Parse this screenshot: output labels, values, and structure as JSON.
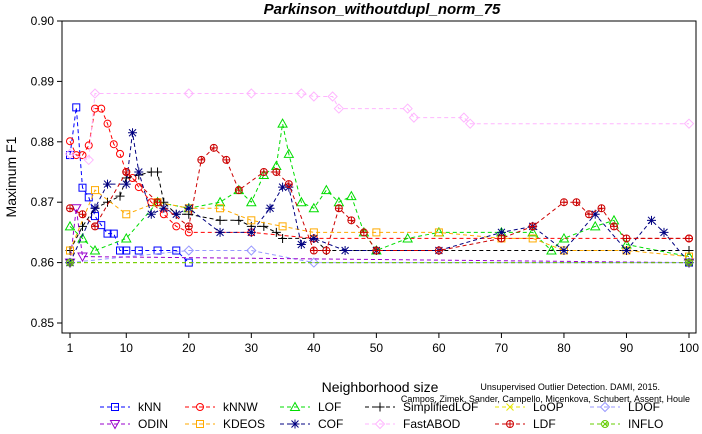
{
  "chart_data": {
    "type": "line",
    "title": "Parkinson_withoutdupl_norm_75",
    "xlabel": "Neighborhood size",
    "ylabel": "Maximum F1",
    "xlim": [
      0,
      100
    ],
    "ylim": [
      0.85,
      0.9
    ],
    "x_ticks": [
      "1",
      "10",
      "20",
      "30",
      "40",
      "50",
      "60",
      "70",
      "80",
      "90",
      "100"
    ],
    "y_ticks": [
      "0.85",
      "0.86",
      "0.87",
      "0.88",
      "0.89",
      "0.90"
    ],
    "grid": false,
    "legend_position": "bottom",
    "watermark": [
      "Campos, Zimek, Sander, Campello, Micenkova, Schubert, Assent, Houle",
      "Unsupervised Outlier Detection. DAMI, 2015."
    ],
    "series": [
      {
        "name": "kNN",
        "color": "#0000ff",
        "marker": "square",
        "points": [
          [
            1,
            0.8778
          ],
          [
            2,
            0.8857
          ],
          [
            3,
            0.8724
          ],
          [
            4,
            0.8708
          ],
          [
            5,
            0.8677
          ],
          [
            6,
            0.8662
          ],
          [
            7,
            0.8648
          ],
          [
            8,
            0.8648
          ],
          [
            9,
            0.862
          ],
          [
            10,
            0.862
          ],
          [
            12,
            0.862
          ],
          [
            15,
            0.862
          ],
          [
            18,
            0.862
          ],
          [
            20,
            0.86
          ],
          [
            100,
            0.86
          ]
        ]
      },
      {
        "name": "kNNW",
        "color": "#ff0000",
        "marker": "circle",
        "points": [
          [
            1,
            0.8801
          ],
          [
            2,
            0.8778
          ],
          [
            3,
            0.8778
          ],
          [
            4,
            0.8794
          ],
          [
            5,
            0.8855
          ],
          [
            6,
            0.8855
          ],
          [
            7,
            0.883
          ],
          [
            8,
            0.8796
          ],
          [
            9,
            0.878
          ],
          [
            10,
            0.875
          ],
          [
            11,
            0.874
          ],
          [
            12,
            0.8725
          ],
          [
            14,
            0.87
          ],
          [
            16,
            0.868
          ],
          [
            18,
            0.866
          ],
          [
            20,
            0.865
          ],
          [
            30,
            0.865
          ],
          [
            40,
            0.864
          ],
          [
            100,
            0.864
          ]
        ]
      },
      {
        "name": "LOF",
        "color": "#00dd00",
        "marker": "triangle",
        "points": [
          [
            1,
            0.866
          ],
          [
            3,
            0.864
          ],
          [
            5,
            0.862
          ],
          [
            10,
            0.864
          ],
          [
            15,
            0.87
          ],
          [
            20,
            0.869
          ],
          [
            25,
            0.87
          ],
          [
            28,
            0.872
          ],
          [
            30,
            0.87
          ],
          [
            32,
            0.8745
          ],
          [
            34,
            0.876
          ],
          [
            35,
            0.883
          ],
          [
            36,
            0.878
          ],
          [
            38,
            0.87
          ],
          [
            40,
            0.869
          ],
          [
            42,
            0.872
          ],
          [
            44,
            0.87
          ],
          [
            46,
            0.871
          ],
          [
            48,
            0.865
          ],
          [
            50,
            0.862
          ],
          [
            55,
            0.864
          ],
          [
            60,
            0.865
          ],
          [
            70,
            0.865
          ],
          [
            75,
            0.865
          ],
          [
            78,
            0.862
          ],
          [
            80,
            0.864
          ],
          [
            85,
            0.866
          ],
          [
            88,
            0.867
          ],
          [
            90,
            0.863
          ],
          [
            100,
            0.861
          ]
        ]
      },
      {
        "name": "SimplifiedLOF",
        "color": "#000000",
        "marker": "plus",
        "points": [
          [
            1,
            0.862
          ],
          [
            3,
            0.866
          ],
          [
            5,
            0.869
          ],
          [
            7,
            0.87
          ],
          [
            9,
            0.871
          ],
          [
            10,
            0.874
          ],
          [
            12,
            0.8745
          ],
          [
            14,
            0.875
          ],
          [
            15,
            0.875
          ],
          [
            16,
            0.87
          ],
          [
            18,
            0.868
          ],
          [
            20,
            0.868
          ],
          [
            25,
            0.867
          ],
          [
            28,
            0.867
          ],
          [
            30,
            0.866
          ],
          [
            32,
            0.866
          ],
          [
            34,
            0.865
          ],
          [
            35,
            0.864
          ],
          [
            40,
            0.864
          ],
          [
            42,
            0.862
          ],
          [
            100,
            0.862
          ]
        ]
      },
      {
        "name": "LoOP",
        "color": "#e6e600",
        "marker": "x",
        "points": [
          [
            1,
            0.86
          ],
          [
            100,
            0.86
          ]
        ]
      },
      {
        "name": "LDOF",
        "color": "#9999ff",
        "marker": "diamond",
        "points": [
          [
            1,
            0.86
          ],
          [
            20,
            0.862
          ],
          [
            30,
            0.862
          ],
          [
            40,
            0.86
          ],
          [
            100,
            0.86
          ]
        ]
      },
      {
        "name": "ODIN",
        "color": "#9900cc",
        "marker": "triangle-down",
        "points": [
          [
            1,
            0.86
          ],
          [
            2,
            0.869
          ],
          [
            3,
            0.861
          ],
          [
            100,
            0.86
          ]
        ]
      },
      {
        "name": "KDEOS",
        "color": "#ffaa00",
        "marker": "square",
        "points": [
          [
            1,
            0.862
          ],
          [
            5,
            0.872
          ],
          [
            10,
            0.868
          ],
          [
            15,
            0.87
          ],
          [
            20,
            0.869
          ],
          [
            25,
            0.869
          ],
          [
            30,
            0.867
          ],
          [
            35,
            0.866
          ],
          [
            40,
            0.865
          ],
          [
            50,
            0.865
          ],
          [
            60,
            0.865
          ],
          [
            70,
            0.864
          ],
          [
            75,
            0.864
          ],
          [
            80,
            0.862
          ],
          [
            90,
            0.862
          ],
          [
            100,
            0.861
          ]
        ]
      },
      {
        "name": "COF",
        "color": "#000080",
        "marker": "star",
        "points": [
          [
            1,
            0.86
          ],
          [
            5,
            0.869
          ],
          [
            7,
            0.873
          ],
          [
            10,
            0.873
          ],
          [
            11,
            0.8815
          ],
          [
            12,
            0.875
          ],
          [
            14,
            0.868
          ],
          [
            16,
            0.869
          ],
          [
            18,
            0.868
          ],
          [
            20,
            0.869
          ],
          [
            25,
            0.865
          ],
          [
            30,
            0.865
          ],
          [
            33,
            0.869
          ],
          [
            35,
            0.8725
          ],
          [
            36,
            0.8725
          ],
          [
            38,
            0.863
          ],
          [
            40,
            0.864
          ],
          [
            45,
            0.862
          ],
          [
            50,
            0.862
          ],
          [
            60,
            0.862
          ],
          [
            70,
            0.865
          ],
          [
            75,
            0.866
          ],
          [
            80,
            0.862
          ],
          [
            85,
            0.868
          ],
          [
            90,
            0.862
          ],
          [
            94,
            0.867
          ],
          [
            96,
            0.865
          ],
          [
            100,
            0.86
          ]
        ]
      },
      {
        "name": "FastABOD",
        "color": "#ffb6ff",
        "marker": "diamond",
        "points": [
          [
            1,
            0.878
          ],
          [
            4,
            0.877
          ],
          [
            5,
            0.888
          ],
          [
            20,
            0.888
          ],
          [
            30,
            0.888
          ],
          [
            38,
            0.888
          ],
          [
            40,
            0.8875
          ],
          [
            43,
            0.8875
          ],
          [
            44,
            0.8855
          ],
          [
            55,
            0.8855
          ],
          [
            56,
            0.884
          ],
          [
            64,
            0.884
          ],
          [
            65,
            0.883
          ],
          [
            100,
            0.883
          ]
        ]
      },
      {
        "name": "LDF",
        "color": "#cc0000",
        "marker": "circle-plus",
        "points": [
          [
            1,
            0.869
          ],
          [
            3,
            0.868
          ],
          [
            5,
            0.866
          ],
          [
            10,
            0.875
          ],
          [
            15,
            0.87
          ],
          [
            20,
            0.866
          ],
          [
            22,
            0.877
          ],
          [
            24,
            0.879
          ],
          [
            26,
            0.877
          ],
          [
            28,
            0.872
          ],
          [
            32,
            0.875
          ],
          [
            34,
            0.875
          ],
          [
            36,
            0.873
          ],
          [
            40,
            0.862
          ],
          [
            42,
            0.862
          ],
          [
            44,
            0.869
          ],
          [
            46,
            0.867
          ],
          [
            48,
            0.865
          ],
          [
            50,
            0.862
          ],
          [
            60,
            0.862
          ],
          [
            70,
            0.864
          ],
          [
            75,
            0.866
          ],
          [
            80,
            0.87
          ],
          [
            82,
            0.87
          ],
          [
            84,
            0.868
          ],
          [
            86,
            0.869
          ],
          [
            88,
            0.866
          ],
          [
            90,
            0.864
          ],
          [
            100,
            0.864
          ]
        ]
      },
      {
        "name": "INFLO",
        "color": "#66cc00",
        "marker": "circle-x",
        "points": [
          [
            1,
            0.86
          ],
          [
            100,
            0.86
          ]
        ]
      }
    ]
  }
}
